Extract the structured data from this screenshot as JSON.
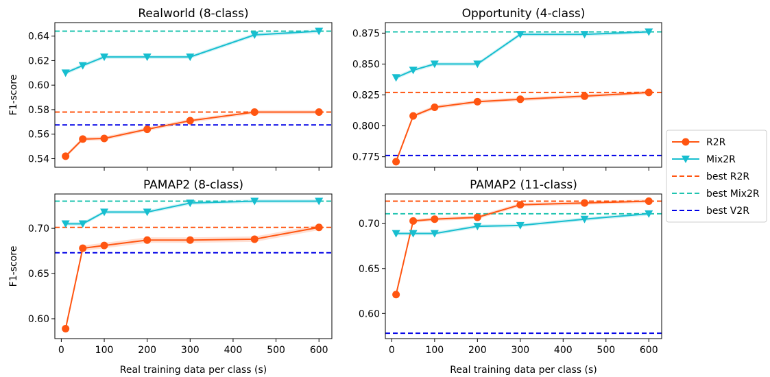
{
  "colors": {
    "r2r": "#ff5511",
    "mix2r": "#17becf",
    "best_r2r": "#ff5511",
    "best_mix2r": "#20c4b0",
    "best_v2r": "#0000e6"
  },
  "legend": {
    "placement": "right",
    "entries": [
      {
        "key": "r2r",
        "label": "R2R",
        "style": "line-circle"
      },
      {
        "key": "mix2r",
        "label": "Mix2R",
        "style": "line-triangle"
      },
      {
        "key": "best_r2r",
        "label": "best R2R",
        "style": "dashed"
      },
      {
        "key": "best_mix2r",
        "label": "best Mix2R",
        "style": "dashed"
      },
      {
        "key": "best_v2r",
        "label": "best V2R",
        "style": "dashed"
      }
    ]
  },
  "chart_data": [
    {
      "type": "line",
      "title": "Realworld (8-class)",
      "ylabel": "F1-score",
      "xlabel": "",
      "xlim": [
        -15,
        630
      ],
      "ylim": [
        0.533,
        0.651
      ],
      "xticks": [
        100,
        200,
        300,
        400,
        500,
        600
      ],
      "xtick_labels": [
        "",
        "",
        "",
        "",
        "",
        ""
      ],
      "yticks": [
        0.54,
        0.56,
        0.58,
        0.6,
        0.62,
        0.64
      ],
      "ytick_labels": [
        "0.54",
        "0.56",
        "0.58",
        "0.60",
        "0.62",
        "0.64"
      ],
      "x": [
        10,
        50,
        100,
        200,
        300,
        450,
        600
      ],
      "series": [
        {
          "name": "R2R",
          "key": "r2r",
          "values": [
            0.542,
            0.556,
            0.5565,
            0.564,
            0.571,
            0.578,
            0.578
          ],
          "band": 0.0015
        },
        {
          "name": "Mix2R",
          "key": "mix2r",
          "values": [
            0.61,
            0.616,
            0.623,
            0.623,
            0.623,
            0.641,
            0.644
          ],
          "band": 0.0015
        }
      ],
      "hlines": [
        {
          "name": "best R2R",
          "key": "best_r2r",
          "value": 0.578
        },
        {
          "name": "best Mix2R",
          "key": "best_mix2r",
          "value": 0.644
        },
        {
          "name": "best V2R",
          "key": "best_v2r",
          "value": 0.5675
        }
      ]
    },
    {
      "type": "line",
      "title": "Opportunity (4-class)",
      "ylabel": "",
      "xlabel": "",
      "xlim": [
        -15,
        630
      ],
      "ylim": [
        0.7665,
        0.8835
      ],
      "xticks": [
        100,
        200,
        300,
        400,
        500,
        600
      ],
      "xtick_labels": [
        "",
        "",
        "",
        "",
        "",
        ""
      ],
      "yticks": [
        0.775,
        0.8,
        0.825,
        0.85,
        0.875
      ],
      "ytick_labels": [
        "0.775",
        "0.800",
        "0.825",
        "0.850",
        "0.875"
      ],
      "x": [
        10,
        50,
        100,
        200,
        300,
        450,
        600
      ],
      "series": [
        {
          "name": "R2R",
          "key": "r2r",
          "values": [
            0.771,
            0.808,
            0.815,
            0.8195,
            0.8215,
            0.824,
            0.827
          ],
          "band": 0.0015
        },
        {
          "name": "Mix2R",
          "key": "mix2r",
          "values": [
            0.839,
            0.845,
            0.85,
            0.85,
            0.874,
            0.874,
            0.876
          ],
          "band": 0.0015
        }
      ],
      "hlines": [
        {
          "name": "best R2R",
          "key": "best_r2r",
          "value": 0.827
        },
        {
          "name": "best Mix2R",
          "key": "best_mix2r",
          "value": 0.876
        },
        {
          "name": "best V2R",
          "key": "best_v2r",
          "value": 0.776
        }
      ]
    },
    {
      "type": "line",
      "title": "PAMAP2 (8-class)",
      "ylabel": "F1-score",
      "xlabel": "Real training data per class (s)",
      "xlim": [
        -15,
        630
      ],
      "ylim": [
        0.578,
        0.738
      ],
      "xticks": [
        0,
        100,
        200,
        300,
        400,
        500,
        600
      ],
      "xtick_labels": [
        "0",
        "100",
        "200",
        "300",
        "400",
        "500",
        "600"
      ],
      "yticks": [
        0.6,
        0.65,
        0.7
      ],
      "ytick_labels": [
        "0.60",
        "0.65",
        "0.70"
      ],
      "x": [
        10,
        50,
        100,
        200,
        300,
        450,
        600
      ],
      "series": [
        {
          "name": "R2R",
          "key": "r2r",
          "values": [
            0.589,
            0.678,
            0.681,
            0.687,
            0.687,
            0.688,
            0.701
          ],
          "band": 0.003
        },
        {
          "name": "Mix2R",
          "key": "mix2r",
          "values": [
            0.705,
            0.705,
            0.718,
            0.718,
            0.728,
            0.73,
            0.73
          ],
          "band": 0.002
        }
      ],
      "hlines": [
        {
          "name": "best R2R",
          "key": "best_r2r",
          "value": 0.701
        },
        {
          "name": "best Mix2R",
          "key": "best_mix2r",
          "value": 0.73
        },
        {
          "name": "best V2R",
          "key": "best_v2r",
          "value": 0.673
        }
      ]
    },
    {
      "type": "line",
      "title": "PAMAP2 (11-class)",
      "ylabel": "",
      "xlabel": "Real training data per class (s)",
      "xlim": [
        -15,
        630
      ],
      "ylim": [
        0.572,
        0.733
      ],
      "xticks": [
        0,
        100,
        200,
        300,
        400,
        500,
        600
      ],
      "xtick_labels": [
        "0",
        "100",
        "200",
        "300",
        "400",
        "500",
        "600"
      ],
      "yticks": [
        0.6,
        0.65,
        0.7
      ],
      "ytick_labels": [
        "0.60",
        "0.65",
        "0.70"
      ],
      "x": [
        10,
        50,
        100,
        200,
        300,
        450,
        600
      ],
      "series": [
        {
          "name": "R2R",
          "key": "r2r",
          "values": [
            0.621,
            0.703,
            0.705,
            0.707,
            0.721,
            0.723,
            0.725
          ],
          "band": 0.002
        },
        {
          "name": "Mix2R",
          "key": "mix2r",
          "values": [
            0.689,
            0.689,
            0.689,
            0.697,
            0.698,
            0.705,
            0.711
          ],
          "band": 0.002
        }
      ],
      "hlines": [
        {
          "name": "best R2R",
          "key": "best_r2r",
          "value": 0.725
        },
        {
          "name": "best Mix2R",
          "key": "best_mix2r",
          "value": 0.711
        },
        {
          "name": "best V2R",
          "key": "best_v2r",
          "value": 0.578
        }
      ]
    }
  ]
}
